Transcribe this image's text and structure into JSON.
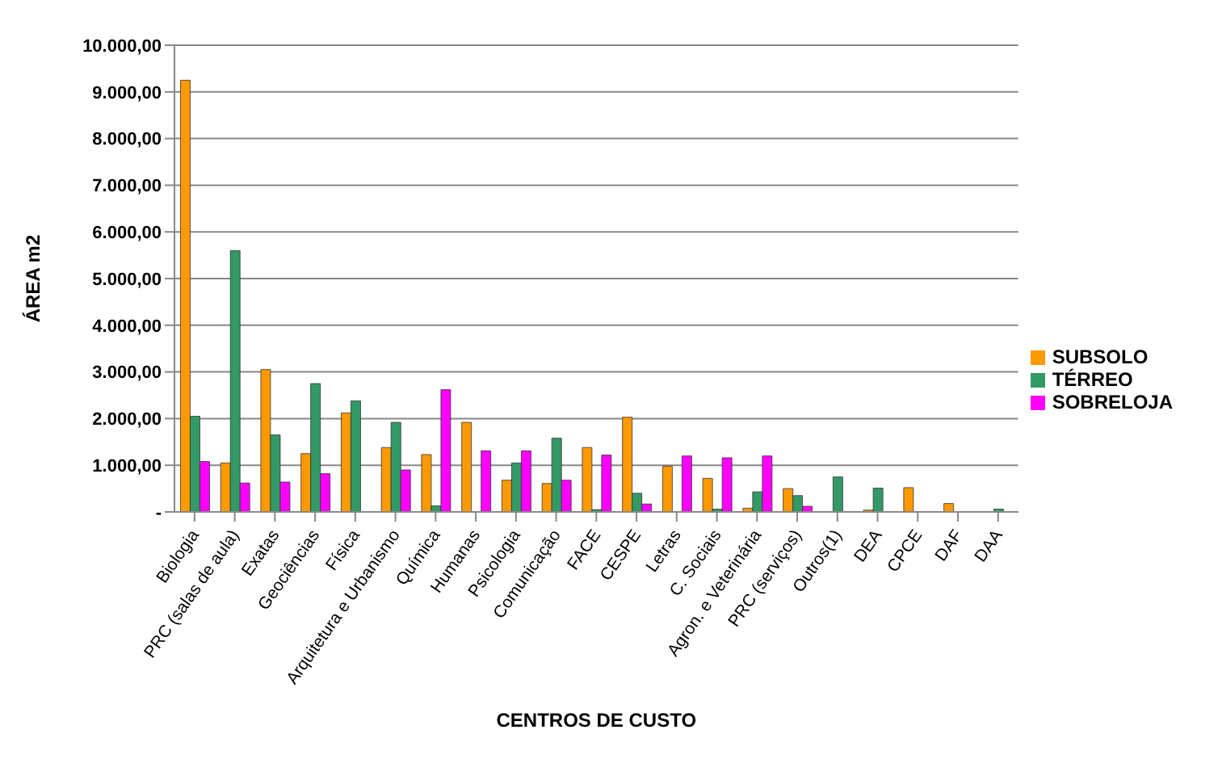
{
  "chart_data": {
    "type": "bar",
    "xlabel": "CENTROS DE CUSTO",
    "ylabel": "ÁREA m2",
    "categories": [
      "Biologia",
      "PRC (salas de aula)",
      "Exatas",
      "Geociências",
      "Física",
      "Arquitetura e Urbanismo",
      "Química",
      "Humanas",
      "Psicologia",
      "Comunicação",
      "FACE",
      "CESPE",
      "Letras",
      "C. Sociais",
      "Agron. e Veterinária",
      "PRC (serviços)",
      "Outros(1)",
      "DEA",
      "CPCE",
      "DAF",
      "DAA"
    ],
    "series": [
      {
        "name": "SUBSOLO",
        "color": "#ff9900",
        "values": [
          9250,
          1050,
          3050,
          1250,
          2120,
          1380,
          1230,
          1920,
          680,
          610,
          1380,
          2030,
          980,
          720,
          80,
          500,
          0,
          40,
          520,
          180,
          0
        ]
      },
      {
        "name": "TÉRREO",
        "color": "#339966",
        "values": [
          2050,
          5600,
          1650,
          2750,
          2380,
          1920,
          130,
          0,
          1050,
          1580,
          50,
          400,
          0,
          60,
          430,
          350,
          750,
          510,
          0,
          0,
          60
        ]
      },
      {
        "name": "SOBRELOJA",
        "color": "#ff00ff",
        "values": [
          1080,
          620,
          640,
          820,
          0,
          900,
          2620,
          1310,
          1310,
          680,
          1220,
          170,
          1200,
          1160,
          1200,
          120,
          0,
          0,
          0,
          0,
          0
        ]
      }
    ],
    "ylim": [
      0,
      10000
    ],
    "yticks": [
      {
        "value": 0,
        "label": "-"
      },
      {
        "value": 1000,
        "label": "1.000,00"
      },
      {
        "value": 2000,
        "label": "2.000,00"
      },
      {
        "value": 3000,
        "label": "3.000,00"
      },
      {
        "value": 4000,
        "label": "4.000,00"
      },
      {
        "value": 5000,
        "label": "5.000,00"
      },
      {
        "value": 6000,
        "label": "6.000,00"
      },
      {
        "value": 7000,
        "label": "7.000,00"
      },
      {
        "value": 8000,
        "label": "8.000,00"
      },
      {
        "value": 9000,
        "label": "9.000,00"
      },
      {
        "value": 10000,
        "label": "10.000,00"
      }
    ],
    "grid": "y",
    "legend": "right"
  }
}
